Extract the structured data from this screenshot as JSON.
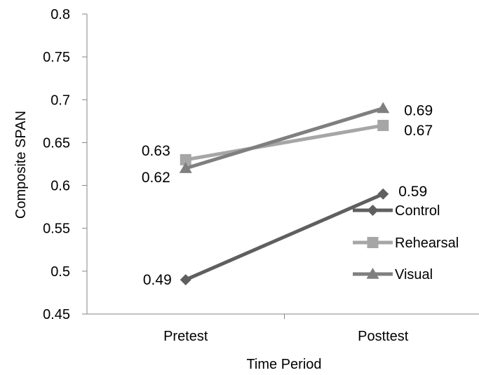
{
  "chart_data": {
    "type": "line",
    "title": "",
    "xlabel": "Time Period",
    "ylabel": "Composite SPAN",
    "categories": [
      "Pretest",
      "Posttest"
    ],
    "ylim": [
      0.45,
      0.8
    ],
    "yticks": [
      "0.45",
      "0.5",
      "0.55",
      "0.6",
      "0.65",
      "0.7",
      "0.75",
      "0.8"
    ],
    "grid": false,
    "legend_position": "right",
    "series": [
      {
        "name": "Control",
        "values": [
          0.49,
          0.59
        ],
        "labels": [
          "0.49",
          "0.59"
        ],
        "color": "#5f5f5f",
        "marker": "diamond"
      },
      {
        "name": "Rehearsal",
        "values": [
          0.63,
          0.67
        ],
        "labels": [
          "0.63",
          "0.67"
        ],
        "color": "#a6a6a6",
        "marker": "square"
      },
      {
        "name": "Visual",
        "values": [
          0.62,
          0.69
        ],
        "labels": [
          "0.62",
          "0.69"
        ],
        "color": "#7f7f7f",
        "marker": "triangle"
      }
    ]
  }
}
